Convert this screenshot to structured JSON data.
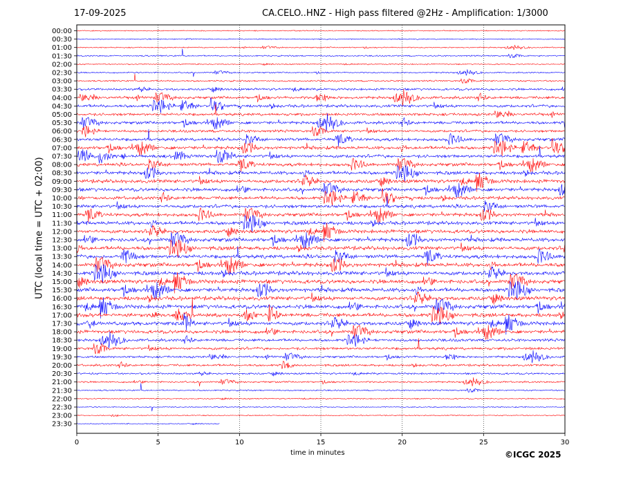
{
  "header": {
    "date": "17-09-2025",
    "title": "CA.CELO..HNZ - High pass filtered @2Hz - Amplification: 1/3000"
  },
  "footer": {
    "copyright": "©ICGC 2025"
  },
  "chart_data": {
    "type": "line",
    "title": "CA.CELO..HNZ - High pass filtered @2Hz - Amplification: 1/3000",
    "xlabel": "time in minutes",
    "ylabel": "UTC (local time = UTC + 02:00)",
    "xlim": [
      0,
      30
    ],
    "x_ticks": [
      "0",
      "5",
      "10",
      "15",
      "20",
      "25",
      "30"
    ],
    "x_tick_values": [
      0,
      5,
      10,
      15,
      20,
      25,
      30
    ],
    "vertical_gridlines_at_minutes": [
      5,
      10,
      15,
      20,
      25
    ],
    "rows": [
      "00:00",
      "00:30",
      "01:00",
      "01:30",
      "02:00",
      "02:30",
      "03:00",
      "03:30",
      "04:00",
      "04:30",
      "05:00",
      "05:30",
      "06:00",
      "06:30",
      "07:00",
      "07:30",
      "08:00",
      "08:30",
      "09:00",
      "09:30",
      "10:00",
      "10:30",
      "11:00",
      "11:30",
      "12:00",
      "12:30",
      "13:00",
      "13:30",
      "14:00",
      "14:30",
      "15:00",
      "15:30",
      "16:00",
      "16:30",
      "17:00",
      "17:30",
      "18:00",
      "18:30",
      "19:00",
      "19:30",
      "20:00",
      "20:30",
      "21:00",
      "21:30",
      "22:00",
      "22:30",
      "23:00",
      "23:30"
    ],
    "row_colors": [
      "#ff0000",
      "#0000ff"
    ],
    "row_color_order": "alternating, starting with red at 00:00",
    "trace_activity": [
      0.1,
      0.1,
      0.15,
      0.2,
      0.15,
      0.2,
      0.25,
      0.45,
      0.6,
      0.65,
      0.6,
      0.65,
      0.55,
      0.7,
      0.75,
      0.75,
      0.75,
      0.8,
      0.85,
      0.8,
      0.75,
      0.8,
      0.8,
      0.85,
      0.85,
      0.9,
      0.9,
      0.9,
      0.95,
      0.95,
      0.95,
      0.95,
      0.95,
      0.95,
      0.9,
      0.9,
      0.8,
      0.6,
      0.6,
      0.45,
      0.45,
      0.35,
      0.3,
      0.2,
      0.15,
      0.1,
      0.1,
      0.1
    ],
    "last_trace_end_minute": 8.8,
    "grid": "vertical dotted lines at 5-minute intervals"
  }
}
